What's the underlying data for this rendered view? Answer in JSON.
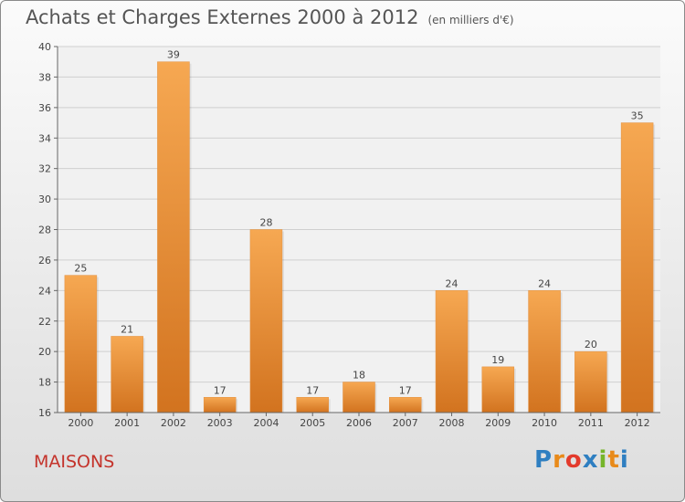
{
  "header": {
    "title": "Achats et Charges Externes 2000 à 2012",
    "unit": "(en milliers d'€)"
  },
  "footer": {
    "label": "MAISONS"
  },
  "logo": {
    "text": "Proxiti",
    "colors": [
      "#2f7fc1",
      "#e88a1a",
      "#e33a2c",
      "#2f7fc1",
      "#76b52a",
      "#e88a1a",
      "#2f7fc1"
    ]
  },
  "colors": {
    "bar_light": "#f6a852",
    "bar_dark": "#d2731f",
    "axis": "#666666",
    "grid": "#cfcfcf"
  },
  "chart_data": {
    "type": "bar",
    "title": "Achats et Charges Externes 2000 à 2012",
    "subtitle": "(en milliers d'€)",
    "categories": [
      "2000",
      "2001",
      "2002",
      "2003",
      "2004",
      "2005",
      "2006",
      "2007",
      "2008",
      "2009",
      "2010",
      "2011",
      "2012"
    ],
    "values": [
      25,
      21,
      39,
      17,
      28,
      17,
      18,
      17,
      24,
      19,
      24,
      20,
      35
    ],
    "ylim": [
      16,
      40
    ],
    "yticks": [
      16,
      18,
      20,
      22,
      24,
      26,
      28,
      30,
      32,
      34,
      36,
      38,
      40
    ],
    "xlabel": "",
    "ylabel": "",
    "grid": true,
    "data_labels": true
  }
}
